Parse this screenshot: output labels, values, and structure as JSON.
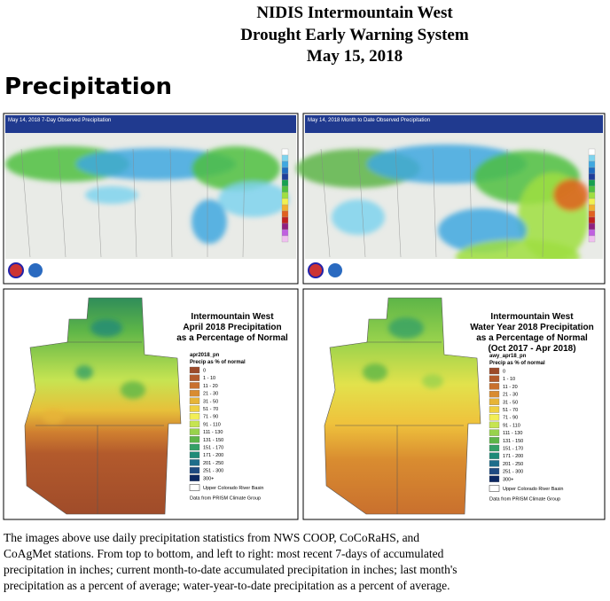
{
  "header": {
    "lines": [
      "NIDIS Intermountain West",
      "Drought Early Warning System",
      "May 15, 2018"
    ]
  },
  "section_title": "Precipitation",
  "panels": [
    {
      "caption": "May 14, 2018 7-Day Observed Precipitation"
    },
    {
      "caption": "May 14, 2018 Month to Date Observed Precipitation"
    }
  ],
  "maps": [
    {
      "title_lines": [
        "Intermountain West",
        "April 2018 Precipitation",
        "as a Percentage of Normal"
      ],
      "layer": "apr2018_pn",
      "legend_title": "Precip as % of normal",
      "basin": "Upper Colorado River Basin",
      "source": "Data from PRISM Climate Group"
    },
    {
      "title_lines": [
        "Intermountain West",
        "Water Year 2018 Precipitation",
        "as a Percentage of Normal",
        "(Oct 2017 - Apr 2018)"
      ],
      "layer": "awy_apr18_pn",
      "legend_title": "Precip as % of normal",
      "basin": "Upper Colorado River Basin",
      "source": "Data from PRISM Climate Group"
    }
  ],
  "legend": [
    {
      "label": "0",
      "color": "#9c4a2a"
    },
    {
      "label": "1 - 10",
      "color": "#b35a2c"
    },
    {
      "label": "11 - 20",
      "color": "#c9702e"
    },
    {
      "label": "21 - 30",
      "color": "#d98c30"
    },
    {
      "label": "31 - 50",
      "color": "#e7b437"
    },
    {
      "label": "51 - 70",
      "color": "#efd040"
    },
    {
      "label": "71 - 90",
      "color": "#f2ee55"
    },
    {
      "label": "91 - 110",
      "color": "#c6e452"
    },
    {
      "label": "111 - 130",
      "color": "#98d24c"
    },
    {
      "label": "131 - 150",
      "color": "#5db548"
    },
    {
      "label": "151 - 170",
      "color": "#34a066"
    },
    {
      "label": "171 - 200",
      "color": "#1f8b78"
    },
    {
      "label": "201 - 250",
      "color": "#1e6d8b"
    },
    {
      "label": "251 - 300",
      "color": "#1e4a82"
    },
    {
      "label": "300+",
      "color": "#0b2762"
    }
  ],
  "body_lines": [
    "The images above use daily precipitation statistics from NWS COOP, CoCoRaHS, and",
    "CoAgMet stations. From top to bottom, and left to right: most recent 7-days of accumulated",
    "precipitation in inches; current month-to-date accumulated precipitation in inches; last month's",
    "precipitation as a percent of average; water-year-to-date precipitation as a percent of average."
  ]
}
